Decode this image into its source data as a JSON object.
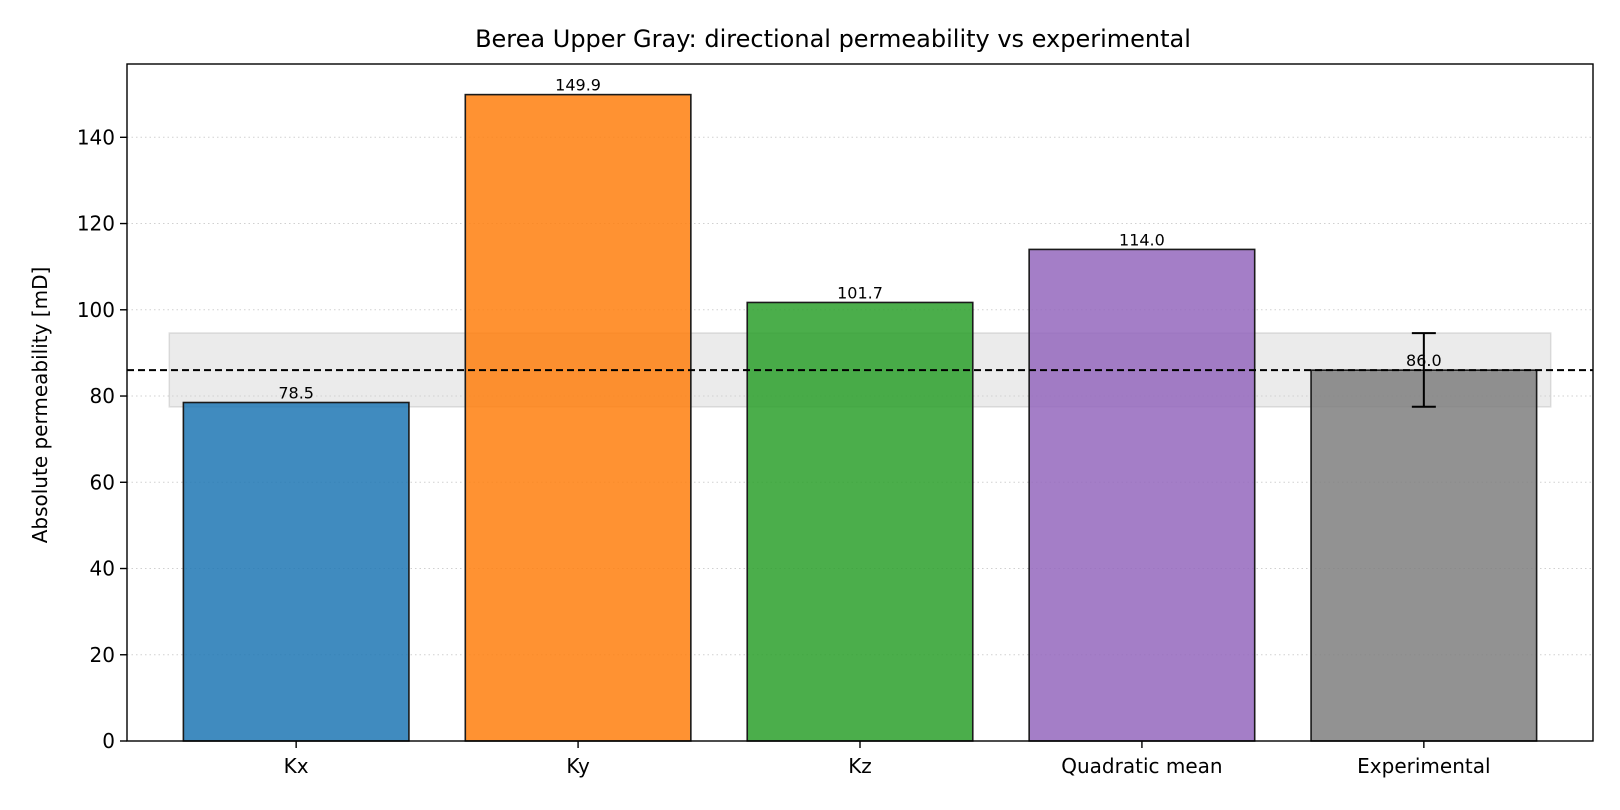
{
  "chart_data": {
    "type": "bar",
    "title": "Berea Upper Gray: directional permeability vs experimental",
    "xlabel": "",
    "ylabel": "Absolute permeability [mD]",
    "ylim": [
      0,
      157
    ],
    "yticks": [
      0,
      20,
      40,
      60,
      80,
      100,
      120,
      140
    ],
    "ytick_labels": [
      "0",
      "20",
      "40",
      "60",
      "80",
      "100",
      "120",
      "140"
    ],
    "grid": "y-dotted",
    "categories": [
      "Kx",
      "Ky",
      "Kz",
      "Quadratic mean",
      "Experimental"
    ],
    "values": [
      78.5,
      149.9,
      101.7,
      114.0,
      86.0
    ],
    "value_labels": [
      "78.5",
      "149.9",
      "101.7",
      "114.0",
      "86.0"
    ],
    "colors": [
      "#1f77b4",
      "#ff7f0e",
      "#2ca02c",
      "#9467bd",
      "#7f7f7f"
    ],
    "experimental": {
      "value": 86.0,
      "error_low": 77.5,
      "error_high": 94.6,
      "reference_line": 86.0,
      "band_color": "#d3d3d3"
    }
  }
}
